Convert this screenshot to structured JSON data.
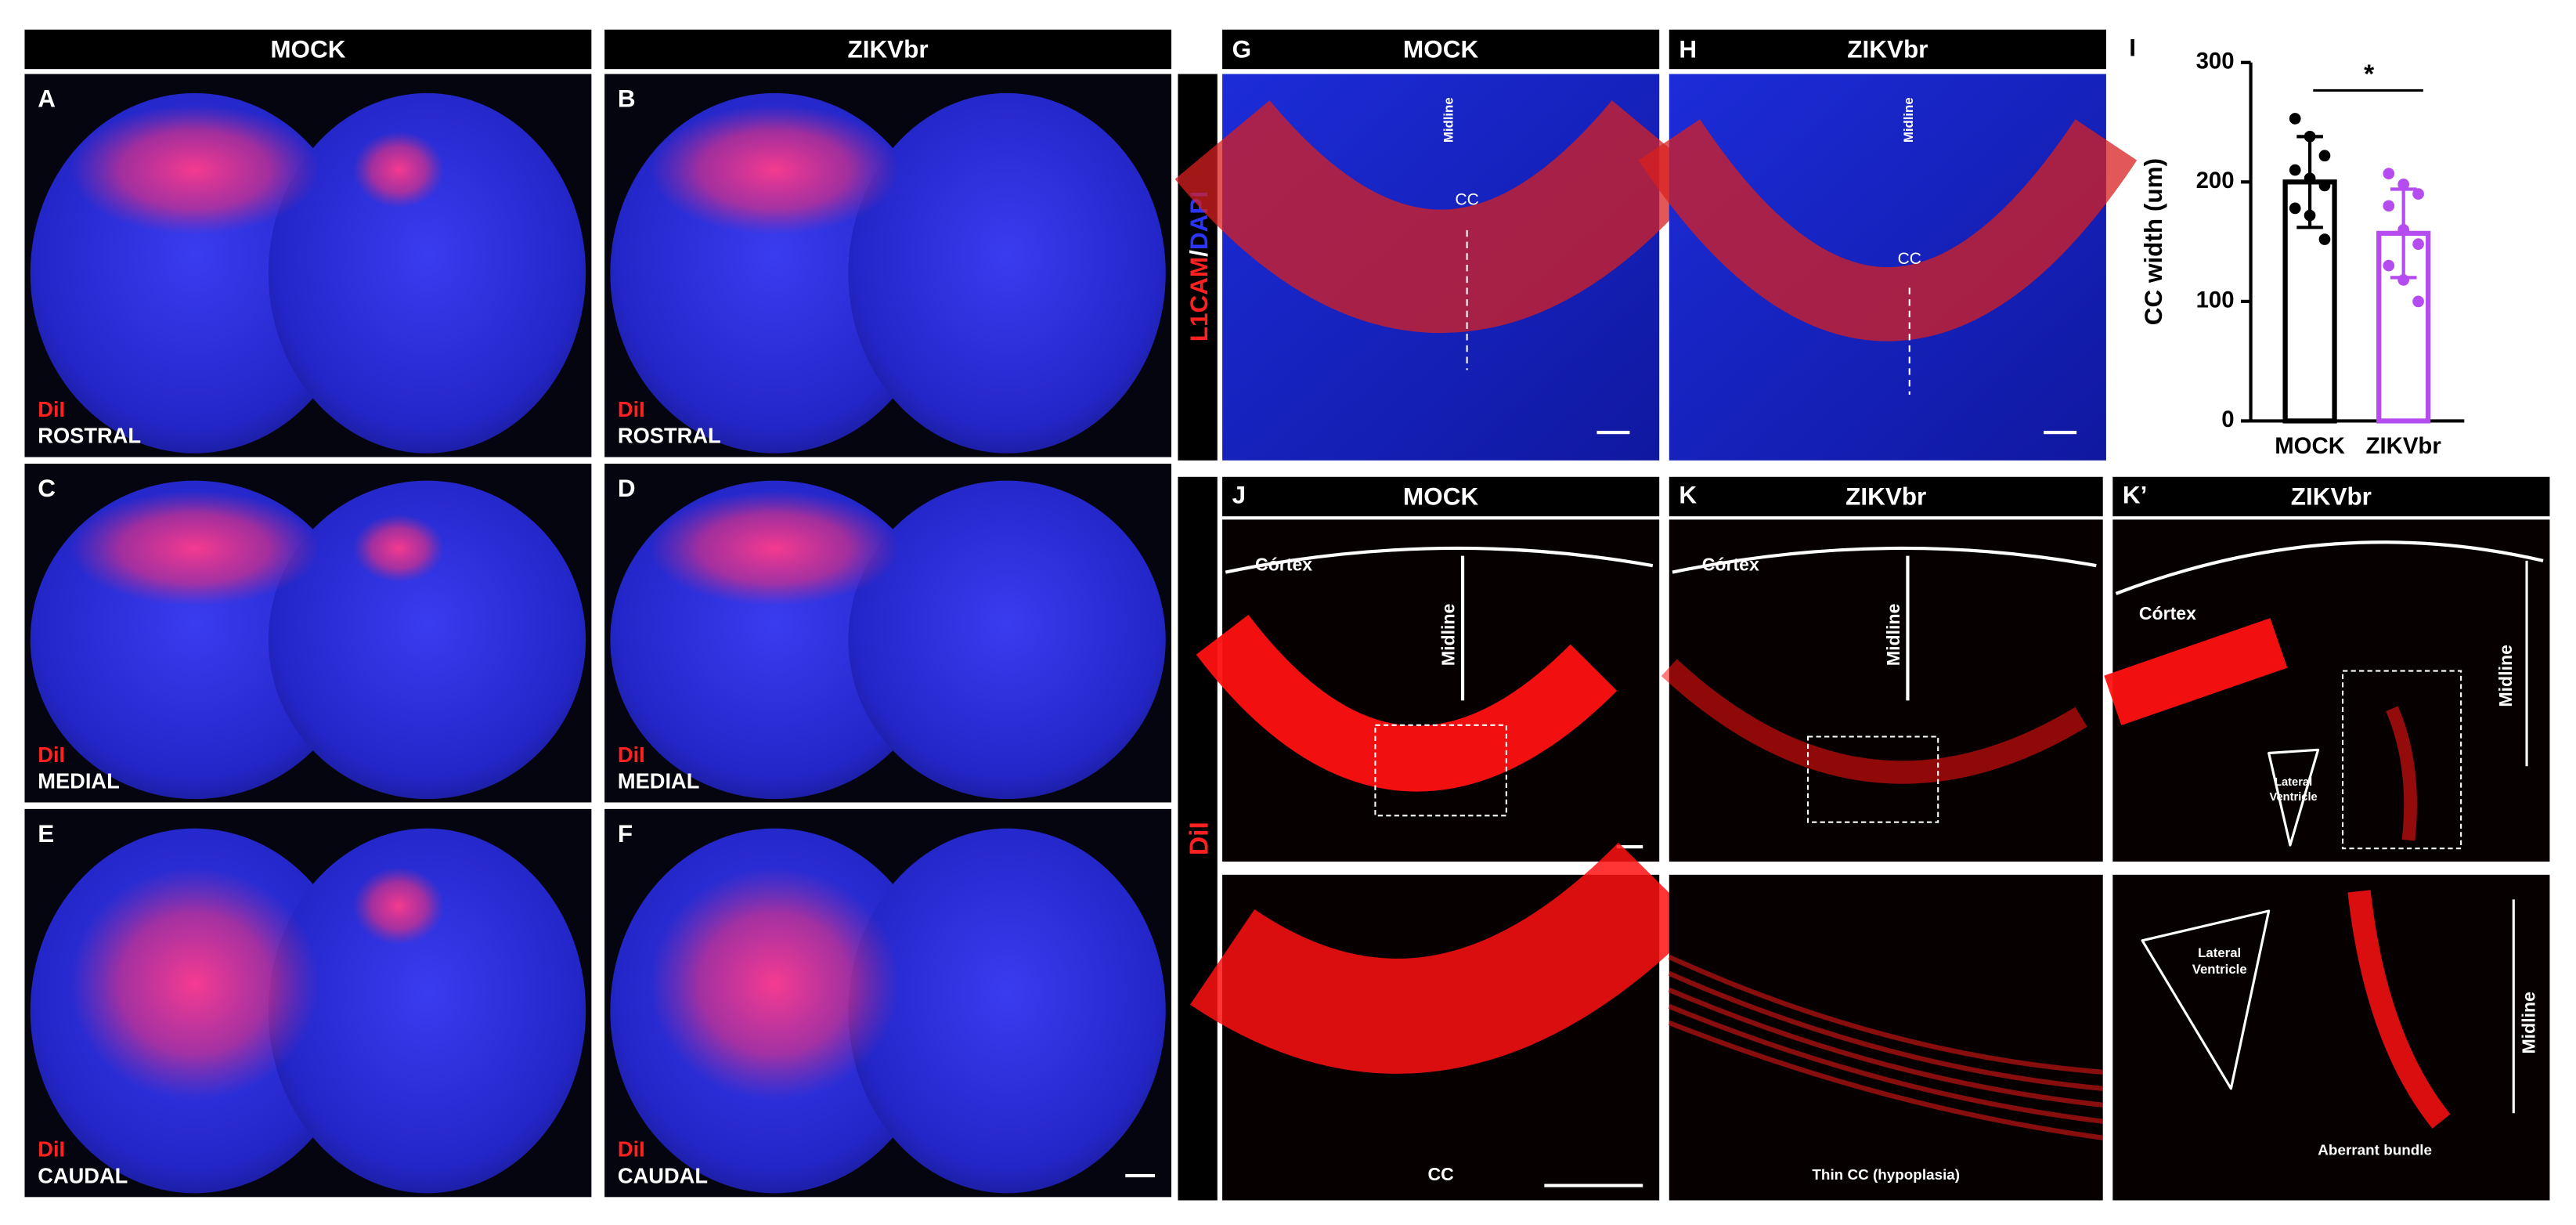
{
  "columns": [
    "MOCK",
    "ZIKVbr"
  ],
  "sections": [
    {
      "letter": "A",
      "stain": "DiI",
      "level": "ROSTRAL"
    },
    {
      "letter": "B",
      "stain": "DiI",
      "level": "ROSTRAL"
    },
    {
      "letter": "C",
      "stain": "DiI",
      "level": "MEDIAL"
    },
    {
      "letter": "D",
      "stain": "DiI",
      "level": "MEDIAL"
    },
    {
      "letter": "E",
      "stain": "DiI",
      "level": "CAUDAL"
    },
    {
      "letter": "F",
      "stain": "DiI",
      "level": "CAUDAL"
    }
  ],
  "stain_label": {
    "marker": "L1CAM",
    "slash": "/",
    "counter": "DAPI"
  },
  "dii_label": "DiI",
  "coronal": [
    {
      "letter": "G",
      "title": "MOCK",
      "midline": "Midline",
      "cc": "CC"
    },
    {
      "letter": "H",
      "title": "ZIKVbr",
      "midline": "Midline",
      "cc": "CC"
    }
  ],
  "dii_panels": [
    {
      "letter": "J",
      "title": "MOCK",
      "cortex": "Córtex",
      "midline": "Midline",
      "caption": "CC"
    },
    {
      "letter": "K",
      "title": "ZIKVbr",
      "cortex": "Córtex",
      "midline": "Midline",
      "caption": "Thin CC (hypoplasia)"
    },
    {
      "letter": "K’",
      "title": "ZIKVbr",
      "cortex": "Córtex",
      "midline": "Midline",
      "ventricle": [
        "Lateral",
        "Ventricle"
      ],
      "zoom_ventricle": [
        "Lateral",
        "Ventricle"
      ],
      "zoom_midline": "Midline",
      "caption": "Aberrant bundle"
    }
  ],
  "chart_data": {
    "type": "bar",
    "letter": "I",
    "y_label": "CC width (um)",
    "categories": [
      "MOCK",
      "ZIKVbr"
    ],
    "values": [
      200,
      157
    ],
    "errors": [
      38,
      37
    ],
    "colors": [
      "#000000",
      "#b44cf0"
    ],
    "points": [
      [
        253,
        238,
        222,
        210,
        203,
        197,
        178,
        172,
        152
      ],
      [
        207,
        198,
        190,
        180,
        160,
        148,
        130,
        118,
        100
      ]
    ],
    "ylim": [
      0,
      300
    ],
    "yticks": [
      0,
      100,
      200,
      300
    ],
    "significance": "*"
  }
}
